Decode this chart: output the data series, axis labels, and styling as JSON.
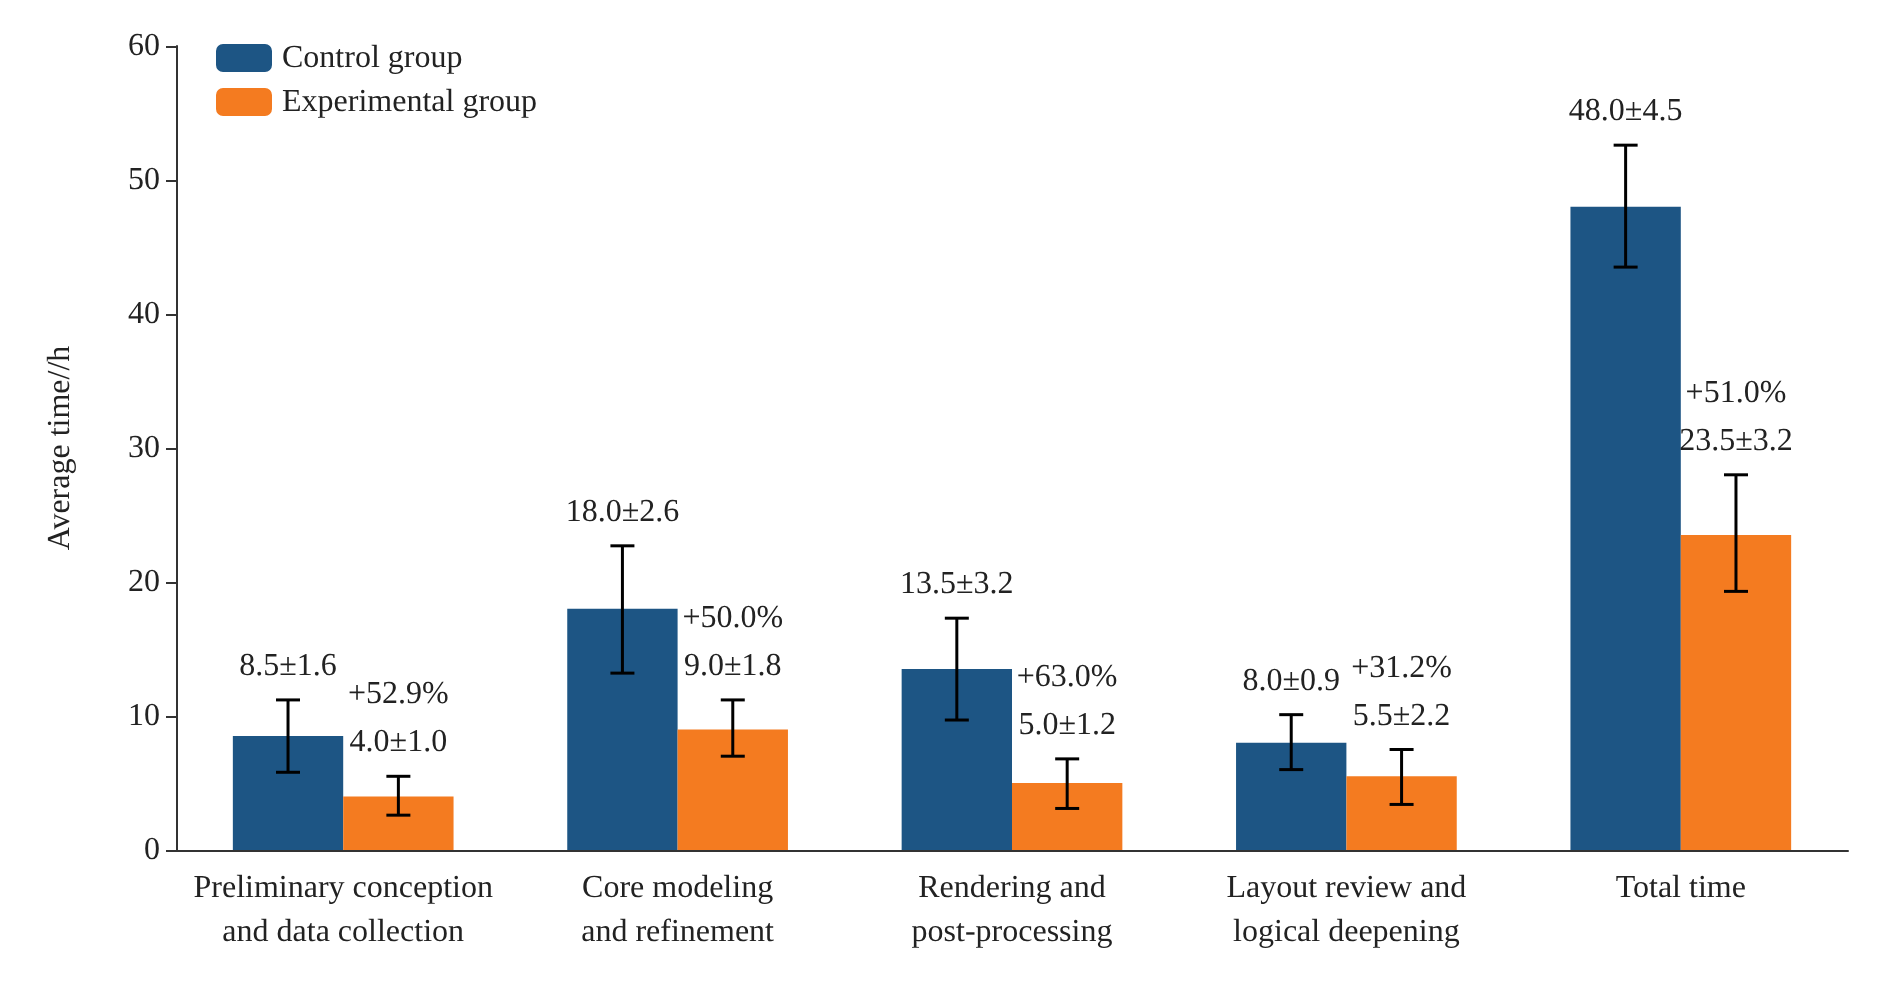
{
  "chart_data": {
    "type": "bar",
    "ylabel": "Average time//h",
    "categories": [
      "Preliminary conception\nand data collection",
      "Core modeling\nand refinement",
      "Rendering and\npost-processing",
      "Layout review and\nlogical deepening",
      "Total time"
    ],
    "series": [
      {
        "name": "Control group",
        "color": "#1d5584",
        "values": [
          8.5,
          18.0,
          13.5,
          8.0,
          48.0
        ],
        "errors": [
          [
            5.8,
            11.2
          ],
          [
            13.2,
            22.7
          ],
          [
            9.7,
            17.3
          ],
          [
            6.0,
            10.1
          ],
          [
            43.5,
            52.6
          ]
        ],
        "value_labels": [
          "8.5±1.6",
          "18.0±2.6",
          "13.5±3.2",
          "8.0±0.9",
          "48.0±4.5"
        ]
      },
      {
        "name": "Experimental group",
        "color": "#f47b20",
        "values": [
          4.0,
          9.0,
          5.0,
          5.5,
          23.5
        ],
        "errors": [
          [
            2.6,
            5.5
          ],
          [
            7.0,
            11.2
          ],
          [
            3.1,
            6.8
          ],
          [
            3.4,
            7.5
          ],
          [
            19.3,
            28.0
          ]
        ],
        "value_labels": [
          "+52.9%\n4.0±1.0",
          "+50.0%\n9.0±1.8",
          "+63.0%\n5.0±1.2",
          "+31.2%\n5.5±2.2",
          "+51.0%\n23.5±3.2"
        ]
      }
    ],
    "ylim": [
      0,
      60
    ],
    "yticks": [
      0,
      10,
      20,
      30,
      40,
      50,
      60
    ],
    "grid": false,
    "legend": "top left"
  }
}
